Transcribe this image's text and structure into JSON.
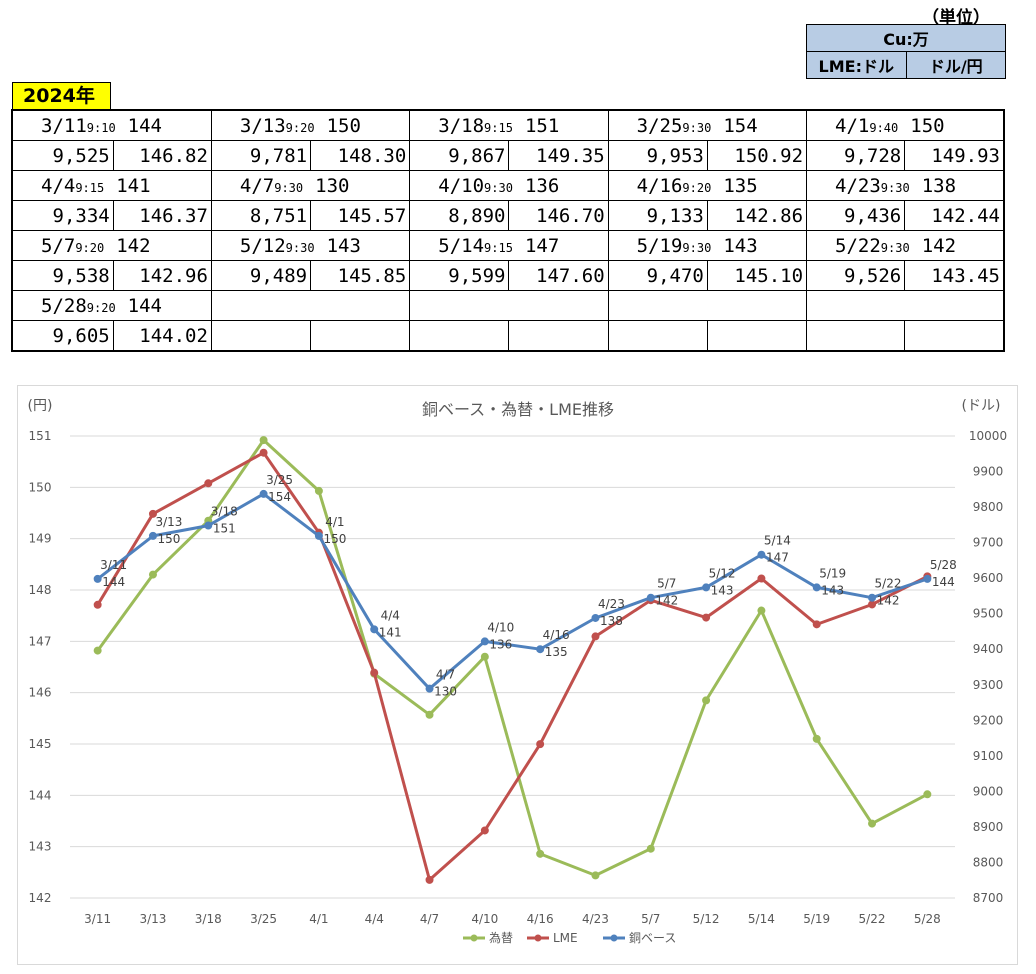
{
  "header": {
    "unit_title": "（単位）",
    "unit_rows": [
      [
        "Cu:万"
      ],
      [
        "LME:ドル",
        "ドル/円"
      ]
    ]
  },
  "year": "2024年",
  "table": {
    "groups": [
      [
        {
          "date": "3/11",
          "time": "9:10",
          "base": "144",
          "lme": "9,525",
          "fx": "146.82"
        },
        {
          "date": "3/13",
          "time": "9:20",
          "base": "150",
          "lme": "9,781",
          "fx": "148.30"
        },
        {
          "date": "3/18",
          "time": "9:15",
          "base": "151",
          "lme": "9,867",
          "fx": "149.35"
        },
        {
          "date": "3/25",
          "time": "9:30",
          "base": "154",
          "lme": "9,953",
          "fx": "150.92"
        },
        {
          "date": "4/1",
          "time": "9:40",
          "base": "150",
          "lme": "9,728",
          "fx": "149.93"
        }
      ],
      [
        {
          "date": "4/4",
          "time": "9:15",
          "base": "141",
          "lme": "9,334",
          "fx": "146.37"
        },
        {
          "date": "4/7",
          "time": "9:30",
          "base": "130",
          "lme": "8,751",
          "fx": "145.57"
        },
        {
          "date": "4/10",
          "time": "9:30",
          "base": "136",
          "lme": "8,890",
          "fx": "146.70"
        },
        {
          "date": "4/16",
          "time": "9:20",
          "base": "135",
          "lme": "9,133",
          "fx": "142.86"
        },
        {
          "date": "4/23",
          "time": "9:30",
          "base": "138",
          "lme": "9,436",
          "fx": "142.44"
        }
      ],
      [
        {
          "date": "5/7",
          "time": "9:20",
          "base": "142",
          "lme": "9,538",
          "fx": "142.96"
        },
        {
          "date": "5/12",
          "time": "9:30",
          "base": "143",
          "lme": "9,489",
          "fx": "145.85"
        },
        {
          "date": "5/14",
          "time": "9:15",
          "base": "147",
          "lme": "9,599",
          "fx": "147.60"
        },
        {
          "date": "5/19",
          "time": "9:30",
          "base": "143",
          "lme": "9,470",
          "fx": "145.10"
        },
        {
          "date": "5/22",
          "time": "9:30",
          "base": "142",
          "lme": "9,526",
          "fx": "143.45"
        }
      ],
      [
        {
          "date": "5/28",
          "time": "9:20",
          "base": "144",
          "lme": "9,605",
          "fx": "144.02"
        }
      ]
    ]
  },
  "chart_data": {
    "type": "line",
    "title": "銅ベース・為替・LME推移",
    "ylabel_left": "(円)",
    "ylabel_right": "(ドル)",
    "categories": [
      "3/11",
      "3/13",
      "3/18",
      "3/25",
      "4/1",
      "4/4",
      "4/7",
      "4/10",
      "4/16",
      "4/23",
      "5/7",
      "5/12",
      "5/14",
      "5/19",
      "5/22",
      "5/28"
    ],
    "ylim_left": [
      142,
      151
    ],
    "yticks_left": [
      142,
      143,
      144,
      145,
      146,
      147,
      148,
      149,
      150,
      151
    ],
    "ylim_right": [
      8700,
      10000
    ],
    "yticks_right": [
      8700,
      8800,
      8900,
      9000,
      9100,
      9200,
      9300,
      9400,
      9500,
      9600,
      9700,
      9800,
      9900,
      10000
    ],
    "grid": true,
    "legend_position": "bottom",
    "series": [
      {
        "name": "為替",
        "axis": "left",
        "color": "#9bbb59",
        "values": [
          146.82,
          148.3,
          149.35,
          150.92,
          149.93,
          146.37,
          145.57,
          146.7,
          142.86,
          142.44,
          142.96,
          145.85,
          147.6,
          145.1,
          143.45,
          144.02
        ]
      },
      {
        "name": "LME",
        "axis": "right",
        "color": "#c0504d",
        "values": [
          9525,
          9781,
          9867,
          9953,
          9728,
          9334,
          8751,
          8890,
          9133,
          9436,
          9538,
          9489,
          9599,
          9470,
          9526,
          9605
        ]
      },
      {
        "name": "銅ベース",
        "axis": "right",
        "color": "#4f81bd",
        "values": [
          9598,
          9719,
          9748,
          9837,
          9719,
          9456,
          9289,
          9422,
          9400,
          9488,
          9545,
          9574,
          9666,
          9574,
          9545,
          9598
        ],
        "labels": [
          [
            "3/11",
            "144"
          ],
          [
            "3/13",
            "150"
          ],
          [
            "3/18",
            "151"
          ],
          [
            "3/25",
            "154"
          ],
          [
            "4/1",
            "150"
          ],
          [
            "4/4",
            "141"
          ],
          [
            "4/7",
            "130"
          ],
          [
            "4/10",
            "136"
          ],
          [
            "4/16",
            "135"
          ],
          [
            "4/23",
            "138"
          ],
          [
            "5/7",
            "142"
          ],
          [
            "5/12",
            "143"
          ],
          [
            "5/14",
            "147"
          ],
          [
            "5/19",
            "143"
          ],
          [
            "5/22",
            "142"
          ],
          [
            "5/28",
            "144"
          ]
        ]
      }
    ]
  }
}
